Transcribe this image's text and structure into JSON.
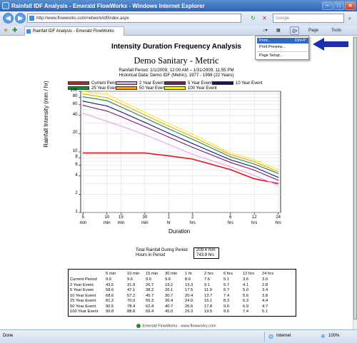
{
  "window": {
    "title": "Rainfall IDF Analysis - Emerald FlowWorks - Windows Internet Explorer",
    "url": "http://www.flowworks.com/network/idf/index.aspx",
    "search_placeholder": "Google",
    "tab_label": "Rainfall IDF Analysis - Emerald FlowWorks",
    "page_menu": "Page",
    "tools_menu": "Tools",
    "print_menu": {
      "items": [
        {
          "label": "Print...",
          "shortcut": "Ctrl+P"
        },
        {
          "label": "Print Preview...",
          "shortcut": ""
        },
        {
          "label": "Page Setup...",
          "shortcut": ""
        }
      ]
    },
    "accent": "#3169c6"
  },
  "report": {
    "title": "Intensity Duration Frequency Analysis",
    "site": "Demo Sanitary - Metric",
    "rainfall_period": "Rainfall Period: 1/1/2009, 12:00 AM – 1/31/2009, 11:55 PM",
    "historical": "Historical Data: Demo IDF (Metric), 1977 - 1998 (22 Years)",
    "total_label": "Total Rainfall During Period",
    "total_value": "209.4 mm",
    "hours_label": "Hours in Period",
    "hours_value": "743.9 hrs"
  },
  "chart_data": {
    "type": "line",
    "xlabel": "Duration",
    "ylabel": "Rainfall Intensity (mm / hr)",
    "x_scale": "log",
    "y_scale": "log",
    "ylim": [
      1,
      100
    ],
    "grid": true,
    "legend_placement": "top",
    "yticks": [
      "100",
      "80",
      "60",
      "40",
      "20",
      "10",
      "8",
      "6",
      "4",
      "2",
      "1"
    ],
    "categories": [
      "5 min",
      "10 min",
      "15 min",
      "30 min",
      "1 hr",
      "2 hrs",
      "6 hrs",
      "12 hrs",
      "24 hrs"
    ],
    "x_minutes": [
      5,
      10,
      15,
      30,
      60,
      120,
      360,
      720,
      1440
    ],
    "series": [
      {
        "name": "Current Period",
        "color": "#e8101a",
        "values": [
          9.6,
          9.6,
          9.6,
          9.6,
          8.6,
          7.6,
          5.1,
          3.6,
          3.0
        ]
      },
      {
        "name": "2 Year Event",
        "color": "#e8a0e8",
        "values": [
          43.5,
          31.9,
          26.7,
          19.2,
          13.3,
          9.1,
          5.7,
          4.1,
          2.8
        ]
      },
      {
        "name": "5 Year Event",
        "color": "#7a1a6e",
        "values": [
          58.6,
          47.1,
          38.2,
          26.1,
          17.5,
          11.9,
          6.7,
          5.0,
          3.4
        ]
      },
      {
        "name": "10 Year Event",
        "color": "#101080",
        "values": [
          68.6,
          57.2,
          45.7,
          30.7,
          20.4,
          13.7,
          7.4,
          5.6,
          3.8
        ]
      },
      {
        "name": "25 Year Event",
        "color": "#1a8a3a",
        "values": [
          81.2,
          70.0,
          55.3,
          36.4,
          24.0,
          16.1,
          8.3,
          6.3,
          4.4
        ]
      },
      {
        "name": "50 Year Event",
        "color": "#f0a020",
        "values": [
          90.5,
          78.4,
          62.4,
          40.7,
          26.6,
          17.8,
          9.0,
          6.9,
          4.7
        ]
      },
      {
        "name": "100 Year Event",
        "color": "#f0f020",
        "values": [
          99.8,
          88.8,
          69.4,
          45.0,
          29.3,
          19.5,
          9.6,
          7.4,
          5.1
        ]
      }
    ]
  },
  "table": {
    "headers": [
      "5 min",
      "10 min",
      "15 min",
      "30 min",
      "1 hr",
      "2 hrs",
      "6 hrs",
      "12 hrs",
      "24 hrs"
    ],
    "rows": [
      {
        "label": "Current Period",
        "values": [
          "9.6",
          "9.6",
          "9.6",
          "9.6",
          "8.6",
          "7.6",
          "5.1",
          "3.6",
          "3.0"
        ]
      },
      {
        "label": "2 Year Event",
        "values": [
          "43.5",
          "31.9",
          "26.7",
          "19.2",
          "13.3",
          "9.1",
          "5.7",
          "4.1",
          "2.8"
        ]
      },
      {
        "label": "5 Year Event",
        "values": [
          "58.6",
          "47.1",
          "38.2",
          "26.1",
          "17.5",
          "11.9",
          "6.7",
          "5.0",
          "3.4"
        ]
      },
      {
        "label": "10 Year Event",
        "values": [
          "68.6",
          "57.2",
          "45.7",
          "30.7",
          "20.4",
          "13.7",
          "7.4",
          "5.6",
          "3.8"
        ]
      },
      {
        "label": "25 Year Event",
        "values": [
          "81.2",
          "70.0",
          "55.3",
          "36.4",
          "24.0",
          "16.1",
          "8.3",
          "6.3",
          "4.4"
        ]
      },
      {
        "label": "50 Year Event",
        "values": [
          "90.5",
          "78.4",
          "62.4",
          "40.7",
          "26.6",
          "17.8",
          "9.0",
          "6.9",
          "4.7"
        ]
      },
      {
        "label": "100 Year Event",
        "values": [
          "99.8",
          "88.8",
          "69.4",
          "45.0",
          "29.3",
          "19.5",
          "9.6",
          "7.4",
          "5.1"
        ]
      }
    ]
  },
  "footer": {
    "text": "Emerald FlowWorks - www.flowworks.com"
  },
  "status": {
    "left": "Done",
    "zone": "Internet",
    "zoom": "100%"
  }
}
